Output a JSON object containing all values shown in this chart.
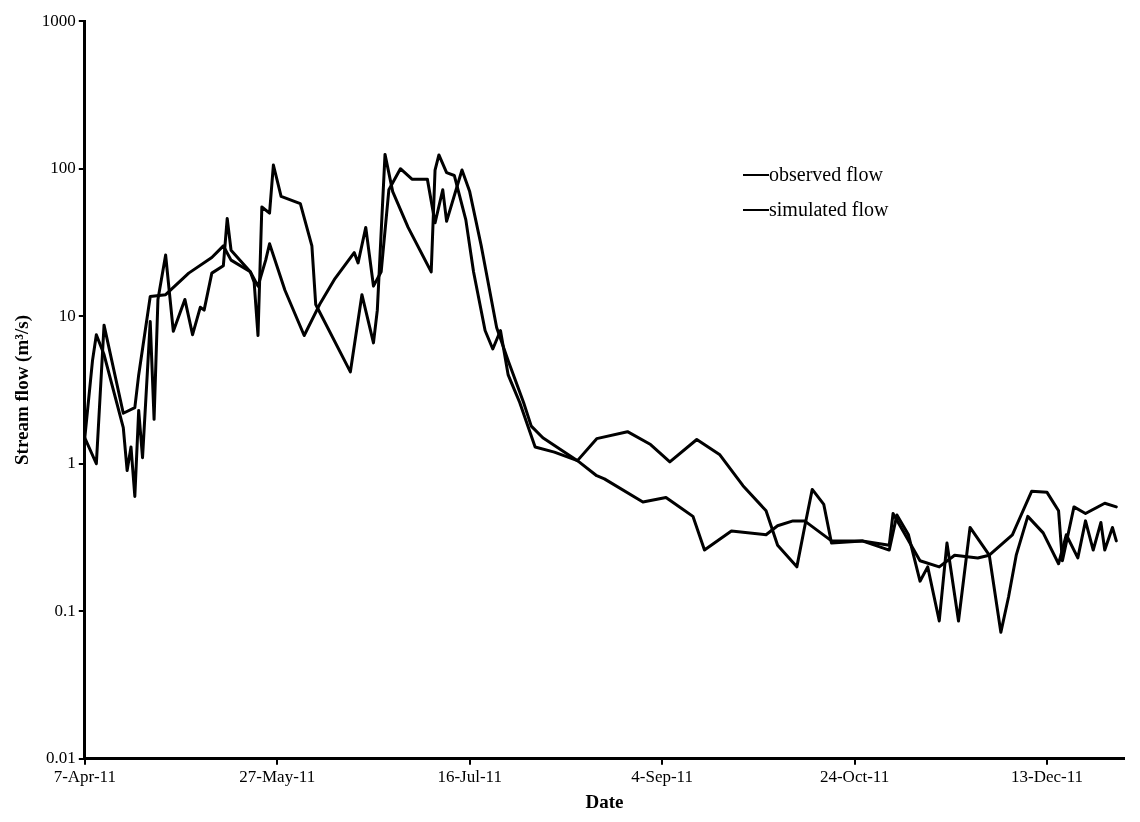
{
  "chart_data": {
    "type": "line",
    "xlabel": "Date",
    "ylabel": "Stream flow (m³/s)",
    "log": "y",
    "grid": false,
    "legend": "right",
    "marker": "none",
    "line_style": "solid",
    "xlim": [
      "2011-04-07",
      "2012-01-02"
    ],
    "xticks": [
      {
        "value": "2011-04-07",
        "label": "7-Apr-11"
      },
      {
        "value": "2011-05-27",
        "label": "27-May-11"
      },
      {
        "value": "2011-07-16",
        "label": "16-Jul-11"
      },
      {
        "value": "2011-09-04",
        "label": "4-Sep-11"
      },
      {
        "value": "2011-10-24",
        "label": "24-Oct-11"
      },
      {
        "value": "2011-12-13",
        "label": "13-Dec-11"
      }
    ],
    "ylim": [
      0.01,
      1000
    ],
    "yticks": [
      0.01,
      0.1,
      1,
      10,
      100,
      1000
    ],
    "series": [
      {
        "name": "observed flow",
        "color": "#000000",
        "x": [
          "2011-04-07",
          "2011-04-10",
          "2011-04-12",
          "2011-04-17",
          "2011-04-20",
          "2011-04-21",
          "2011-04-24",
          "2011-04-28",
          "2011-05-04",
          "2011-05-10",
          "2011-05-13",
          "2011-05-15",
          "2011-05-20",
          "2011-05-22",
          "2011-05-24",
          "2011-05-25",
          "2011-05-29",
          "2011-06-03",
          "2011-06-07",
          "2011-06-11",
          "2011-06-16",
          "2011-06-17",
          "2011-06-19",
          "2011-06-21",
          "2011-06-23",
          "2011-06-25",
          "2011-06-28",
          "2011-07-01",
          "2011-07-05",
          "2011-07-07",
          "2011-07-09",
          "2011-07-10",
          "2011-07-14",
          "2011-07-16",
          "2011-07-19",
          "2011-07-23",
          "2011-07-26",
          "2011-07-30",
          "2011-08-01",
          "2011-08-04",
          "2011-08-13",
          "2011-08-18",
          "2011-08-26",
          "2011-09-01",
          "2011-09-06",
          "2011-09-13",
          "2011-09-19",
          "2011-09-25",
          "2011-10-01",
          "2011-10-04",
          "2011-10-09",
          "2011-10-11",
          "2011-10-13",
          "2011-10-16",
          "2011-10-18",
          "2011-10-26",
          "2011-11-02",
          "2011-11-04",
          "2011-11-07",
          "2011-11-10",
          "2011-11-12",
          "2011-11-15",
          "2011-11-17",
          "2011-11-20",
          "2011-11-23",
          "2011-11-28",
          "2011-12-01",
          "2011-12-03",
          "2011-12-05",
          "2011-12-08",
          "2011-12-12",
          "2011-12-16",
          "2011-12-18",
          "2011-12-21",
          "2011-12-23",
          "2011-12-25",
          "2011-12-27",
          "2011-12-28",
          "2011-12-30",
          "2011-12-31"
        ],
        "values": [
          1.5,
          1.0,
          8.7,
          2.2,
          2.4,
          4,
          13.6,
          14,
          19.6,
          25,
          30,
          24,
          20,
          16,
          24,
          31,
          15,
          7.4,
          12,
          18,
          27,
          23,
          40,
          16,
          20,
          72,
          100,
          85,
          85,
          43,
          72,
          44,
          98,
          70,
          30,
          8.4,
          5,
          2.6,
          1.8,
          1.5,
          1.05,
          1.48,
          1.65,
          1.35,
          1.03,
          1.46,
          1.15,
          0.71,
          0.48,
          0.28,
          0.2,
          0.37,
          0.67,
          0.53,
          0.29,
          0.3,
          0.26,
          0.45,
          0.33,
          0.16,
          0.2,
          0.086,
          0.29,
          0.086,
          0.37,
          0.24,
          0.072,
          0.125,
          0.24,
          0.44,
          0.34,
          0.21,
          0.33,
          0.23,
          0.41,
          0.26,
          0.4,
          0.26,
          0.37,
          0.3
        ]
      },
      {
        "name": "simulated flow",
        "color": "#000000",
        "x": [
          "2011-04-07",
          "2011-04-09",
          "2011-04-10",
          "2011-04-12",
          "2011-04-17",
          "2011-04-18",
          "2011-04-19",
          "2011-04-20",
          "2011-04-21",
          "2011-04-22",
          "2011-04-24",
          "2011-04-25",
          "2011-04-26",
          "2011-04-28",
          "2011-04-30",
          "2011-05-03",
          "2011-05-05",
          "2011-05-07",
          "2011-05-08",
          "2011-05-10",
          "2011-05-13",
          "2011-05-14",
          "2011-05-15",
          "2011-05-20",
          "2011-05-21",
          "2011-05-22",
          "2011-05-23",
          "2011-05-25",
          "2011-05-26",
          "2011-05-28",
          "2011-06-02",
          "2011-06-05",
          "2011-06-06",
          "2011-06-15",
          "2011-06-18",
          "2011-06-21",
          "2011-06-22",
          "2011-06-24",
          "2011-06-26",
          "2011-06-30",
          "2011-07-06",
          "2011-07-07",
          "2011-07-08",
          "2011-07-10",
          "2011-07-12",
          "2011-07-15",
          "2011-07-17",
          "2011-07-20",
          "2011-07-22",
          "2011-07-24",
          "2011-07-26",
          "2011-07-29",
          "2011-08-02",
          "2011-08-07",
          "2011-08-13",
          "2011-08-18",
          "2011-08-20",
          "2011-08-30",
          "2011-09-05",
          "2011-09-12",
          "2011-09-15",
          "2011-09-22",
          "2011-10-01",
          "2011-10-04",
          "2011-10-08",
          "2011-10-11",
          "2011-10-18",
          "2011-10-26",
          "2011-11-02",
          "2011-11-03",
          "2011-11-10",
          "2011-11-15",
          "2011-11-19",
          "2011-11-25",
          "2011-11-28",
          "2011-12-04",
          "2011-12-09",
          "2011-12-13",
          "2011-12-16",
          "2011-12-17",
          "2011-12-20",
          "2011-12-23",
          "2011-12-28",
          "2011-12-31"
        ],
        "values": [
          1.5,
          5,
          7.5,
          5.5,
          1.76,
          0.9,
          1.3,
          0.6,
          2.3,
          1.1,
          9.2,
          2.0,
          13,
          26,
          7.9,
          13,
          7.5,
          11.5,
          11,
          19.6,
          22,
          46,
          28,
          20,
          17,
          7.4,
          55,
          50,
          106,
          65,
          58,
          30,
          12,
          4.2,
          14,
          6.6,
          11,
          125,
          70,
          40,
          20,
          98,
          124,
          94,
          90,
          45,
          20,
          8,
          6,
          8,
          4,
          2.6,
          1.3,
          1.2,
          1.05,
          0.83,
          0.79,
          0.55,
          0.59,
          0.44,
          0.26,
          0.35,
          0.33,
          0.38,
          0.41,
          0.41,
          0.3,
          0.3,
          0.28,
          0.46,
          0.22,
          0.2,
          0.24,
          0.23,
          0.24,
          0.33,
          0.65,
          0.64,
          0.48,
          0.22,
          0.51,
          0.46,
          0.54,
          0.51
        ]
      }
    ]
  }
}
